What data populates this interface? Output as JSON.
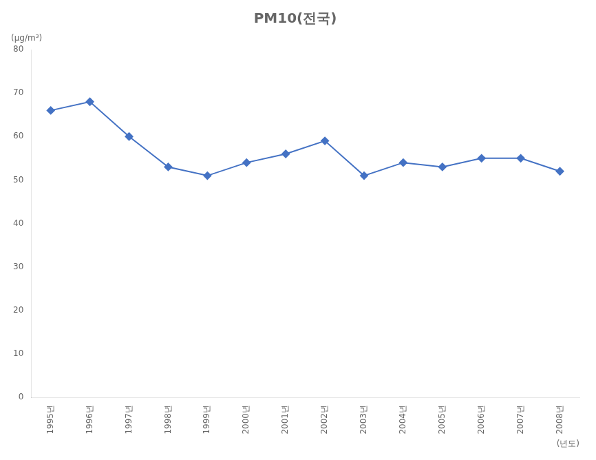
{
  "chart_data": {
    "type": "line",
    "title": "PM10(전국)",
    "ylabel": "(μg/m³)",
    "xlabel": "(년도)",
    "categories": [
      "1995년",
      "1996년",
      "1997년",
      "1998년",
      "1999년",
      "2000년",
      "2001년",
      "2002년",
      "2003년",
      "2004년",
      "2005년",
      "2006년",
      "2007년",
      "2008년"
    ],
    "values": [
      66,
      68,
      60,
      53,
      51,
      54,
      56,
      59,
      51,
      54,
      53,
      55,
      55,
      52
    ],
    "color": "#4472C4",
    "marker": "diamond",
    "ylim": [
      0,
      80
    ],
    "yticks": [
      0,
      10,
      20,
      30,
      40,
      50,
      60,
      70,
      80
    ],
    "grid": false
  }
}
